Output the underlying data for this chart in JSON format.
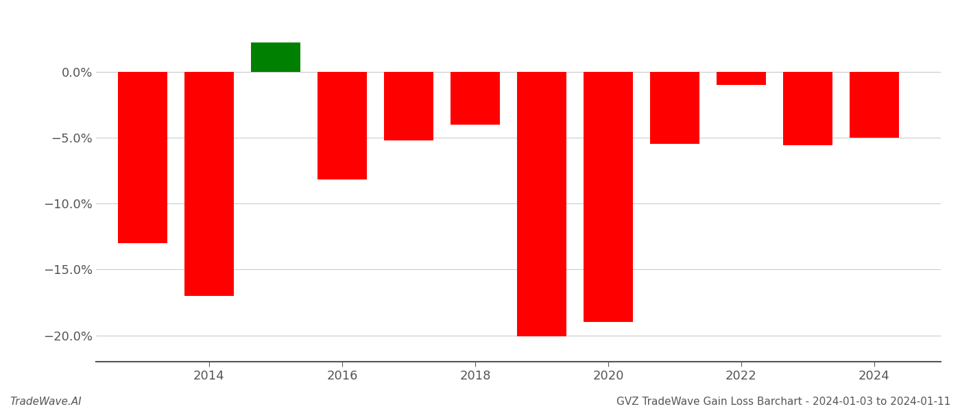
{
  "years": [
    2013,
    2014,
    2015,
    2016,
    2017,
    2018,
    2019,
    2020,
    2021,
    2022,
    2023,
    2024
  ],
  "values": [
    -0.13,
    -0.17,
    0.022,
    -0.082,
    -0.052,
    -0.04,
    -0.201,
    -0.19,
    -0.055,
    -0.01,
    -0.056,
    -0.05
  ],
  "colors": [
    "#ff0000",
    "#ff0000",
    "#008000",
    "#ff0000",
    "#ff0000",
    "#ff0000",
    "#ff0000",
    "#ff0000",
    "#ff0000",
    "#ff0000",
    "#ff0000",
    "#ff0000"
  ],
  "ylim": [
    -0.22,
    0.045
  ],
  "yticks": [
    0.0,
    -0.05,
    -0.1,
    -0.15,
    -0.2
  ],
  "ytick_labels": [
    "0.0%",
    "−5.0%",
    "−10.0%",
    "−15.0%",
    "−20.0%"
  ],
  "xticks": [
    2014,
    2016,
    2018,
    2020,
    2022,
    2024
  ],
  "xlim": [
    2012.3,
    2025.0
  ],
  "footnote_left": "TradeWave.AI",
  "footnote_right": "GVZ TradeWave Gain Loss Barchart - 2024-01-03 to 2024-01-11",
  "bar_width": 0.75,
  "background_color": "#ffffff",
  "grid_color": "#cccccc",
  "axis_color": "#555555",
  "tick_label_color": "#555555",
  "footnote_fontsize": 11,
  "tick_fontsize": 13
}
